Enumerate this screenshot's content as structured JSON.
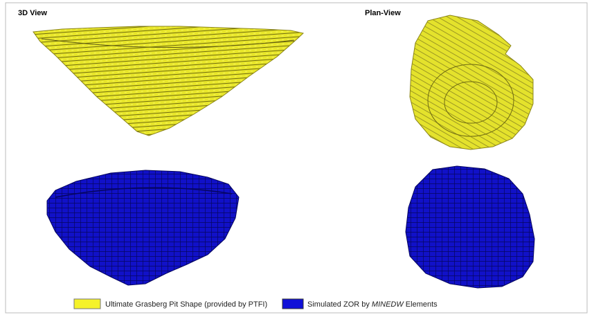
{
  "panels": {
    "left_title": "3D View",
    "right_title": "Plan-View"
  },
  "legend": {
    "items": [
      {
        "text": "Ultimate Grasberg Pit Shape (provided by PTFI)"
      },
      {
        "text_before": "Simulated ZOR by ",
        "text_italic": "MINEDW",
        "text_after": " Elements"
      }
    ]
  }
}
